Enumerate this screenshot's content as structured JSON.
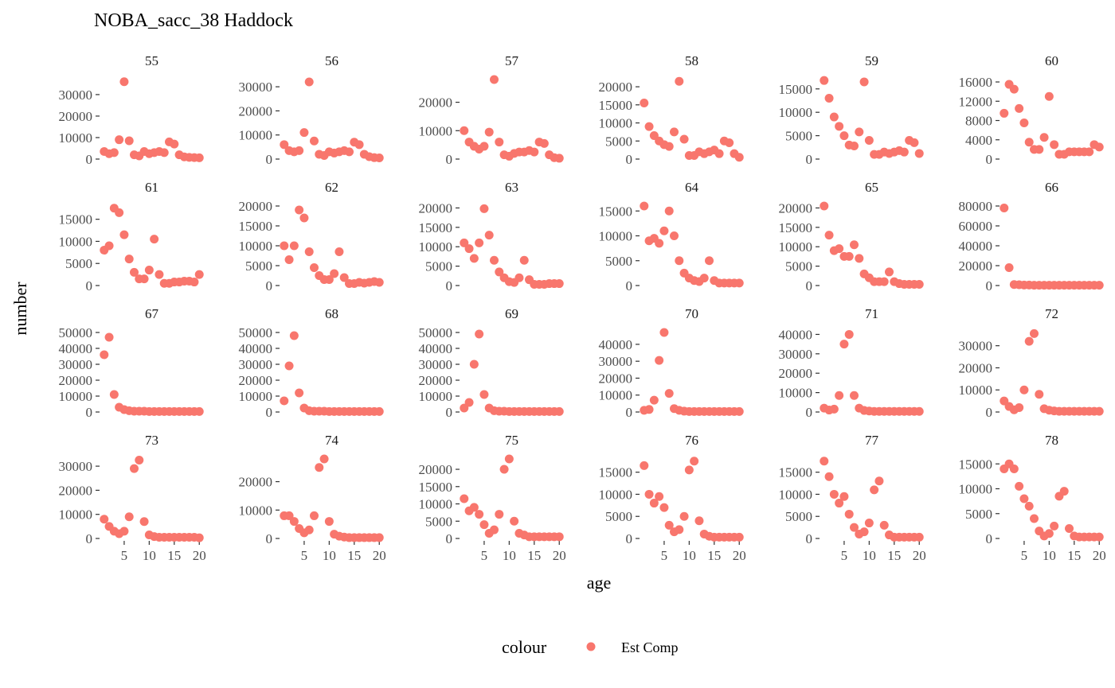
{
  "chart_data": {
    "type": "scatter",
    "title": "NOBA_sacc_38 Haddock",
    "xlabel": "age",
    "ylabel": "number",
    "x": [
      1,
      2,
      3,
      4,
      5,
      6,
      7,
      8,
      9,
      10,
      11,
      12,
      13,
      14,
      15,
      16,
      17,
      18,
      19,
      20
    ],
    "x_ticks": [
      5,
      10,
      15,
      20
    ],
    "grid": false,
    "legend": {
      "title": "colour",
      "position": "bottom",
      "entries": [
        {
          "label": "Est Comp",
          "color": "#F8766D"
        }
      ]
    },
    "panels": [
      {
        "label": "55",
        "ylim": [
          0,
          37000
        ],
        "yticks": [
          0,
          10000,
          20000,
          30000
        ],
        "values": [
          3500,
          2500,
          3000,
          9000,
          36000,
          8500,
          2000,
          1500,
          3500,
          2500,
          3000,
          3500,
          3000,
          8000,
          7000,
          2000,
          1000,
          800,
          700,
          600
        ]
      },
      {
        "label": "56",
        "ylim": [
          0,
          33000
        ],
        "yticks": [
          0,
          10000,
          20000,
          30000
        ],
        "values": [
          6000,
          3500,
          3000,
          3500,
          11000,
          32000,
          7500,
          2000,
          1500,
          3000,
          2500,
          3000,
          3500,
          3000,
          7000,
          6000,
          2000,
          1000,
          600,
          500
        ]
      },
      {
        "label": "57",
        "ylim": [
          0,
          28000
        ],
        "yticks": [
          0,
          10000,
          20000
        ],
        "values": [
          10000,
          6000,
          4500,
          3500,
          4500,
          9500,
          28000,
          6000,
          1500,
          1000,
          2000,
          2500,
          2500,
          3000,
          2500,
          6000,
          5500,
          1500,
          500,
          300
        ]
      },
      {
        "label": "58",
        "ylim": [
          0,
          22000
        ],
        "yticks": [
          0,
          5000,
          10000,
          15000,
          20000
        ],
        "values": [
          15500,
          9000,
          6500,
          5000,
          4000,
          3500,
          7500,
          21500,
          5500,
          1000,
          1000,
          2000,
          1500,
          2000,
          2500,
          1500,
          5000,
          4500,
          1500,
          500
        ]
      },
      {
        "label": "59",
        "ylim": [
          0,
          17000
        ],
        "yticks": [
          0,
          5000,
          10000,
          15000
        ],
        "values": [
          16800,
          13000,
          9000,
          7000,
          5000,
          3000,
          2800,
          5800,
          16500,
          4000,
          1000,
          1000,
          1500,
          1200,
          1500,
          1800,
          1500,
          4000,
          3500,
          1200
        ]
      },
      {
        "label": "60",
        "ylim": [
          0,
          16500
        ],
        "yticks": [
          0,
          4000,
          8000,
          12000,
          16000
        ],
        "values": [
          9500,
          15500,
          14500,
          10500,
          7500,
          3500,
          2000,
          2000,
          4500,
          13000,
          3000,
          1000,
          1000,
          1500,
          1500,
          1500,
          1500,
          1500,
          3000,
          2500
        ]
      },
      {
        "label": "61",
        "ylim": [
          0,
          18000
        ],
        "yticks": [
          0,
          5000,
          10000,
          15000
        ],
        "values": [
          8000,
          9000,
          17500,
          16500,
          11500,
          6000,
          3000,
          1500,
          1500,
          3500,
          10500,
          2500,
          500,
          500,
          800,
          800,
          1000,
          1000,
          800,
          2500
        ]
      },
      {
        "label": "62",
        "ylim": [
          0,
          20000
        ],
        "yticks": [
          0,
          5000,
          10000,
          15000,
          20000
        ],
        "values": [
          10000,
          6500,
          10000,
          19000,
          17000,
          8500,
          4500,
          2500,
          1500,
          1500,
          3000,
          8500,
          2000,
          500,
          500,
          800,
          600,
          800,
          1000,
          800
        ]
      },
      {
        "label": "63",
        "ylim": [
          0,
          20500
        ],
        "yticks": [
          0,
          5000,
          10000,
          15000,
          20000
        ],
        "values": [
          11000,
          9500,
          7000,
          11000,
          19800,
          13000,
          6500,
          3500,
          2000,
          1000,
          800,
          2000,
          6500,
          1500,
          300,
          300,
          300,
          500,
          500,
          500
        ]
      },
      {
        "label": "64",
        "ylim": [
          0,
          16000
        ],
        "yticks": [
          0,
          5000,
          10000,
          15000
        ],
        "values": [
          16000,
          9000,
          9500,
          8500,
          11000,
          15000,
          10000,
          5000,
          2500,
          1500,
          1000,
          800,
          1500,
          5000,
          1000,
          500,
          500,
          500,
          500,
          500
        ]
      },
      {
        "label": "65",
        "ylim": [
          0,
          20500
        ],
        "yticks": [
          0,
          5000,
          10000,
          15000,
          20000
        ],
        "values": [
          20500,
          13000,
          9000,
          9500,
          7500,
          7500,
          10500,
          7000,
          3000,
          2000,
          1000,
          1000,
          1000,
          3500,
          1000,
          500,
          300,
          300,
          300,
          300
        ]
      },
      {
        "label": "66",
        "ylim": [
          0,
          80000
        ],
        "yticks": [
          0,
          20000,
          40000,
          60000,
          80000
        ],
        "values": [
          78000,
          18000,
          1000,
          800,
          500,
          500,
          300,
          300,
          300,
          300,
          300,
          300,
          300,
          300,
          300,
          300,
          300,
          300,
          300,
          300
        ]
      },
      {
        "label": "67",
        "ylim": [
          0,
          50000
        ],
        "yticks": [
          0,
          10000,
          20000,
          30000,
          40000,
          50000
        ],
        "values": [
          36000,
          47000,
          11000,
          3000,
          1500,
          800,
          500,
          500,
          500,
          300,
          300,
          300,
          300,
          300,
          300,
          300,
          300,
          300,
          300,
          300
        ]
      },
      {
        "label": "68",
        "ylim": [
          0,
          50000
        ],
        "yticks": [
          0,
          10000,
          20000,
          30000,
          40000,
          50000
        ],
        "values": [
          7000,
          29000,
          48000,
          12000,
          2500,
          800,
          500,
          500,
          500,
          300,
          300,
          300,
          300,
          300,
          300,
          300,
          300,
          300,
          300,
          300
        ]
      },
      {
        "label": "69",
        "ylim": [
          0,
          50000
        ],
        "yticks": [
          0,
          10000,
          20000,
          30000,
          40000,
          50000
        ],
        "values": [
          2500,
          6000,
          30000,
          49000,
          11000,
          2500,
          800,
          500,
          500,
          300,
          300,
          300,
          300,
          300,
          300,
          300,
          300,
          300,
          300,
          300
        ]
      },
      {
        "label": "70",
        "ylim": [
          0,
          47000
        ],
        "yticks": [
          0,
          10000,
          20000,
          30000,
          40000
        ],
        "values": [
          1000,
          1500,
          7000,
          30500,
          47000,
          11000,
          2000,
          1000,
          500,
          300,
          300,
          300,
          300,
          300,
          300,
          300,
          300,
          300,
          300,
          300
        ]
      },
      {
        "label": "71",
        "ylim": [
          0,
          41000
        ],
        "yticks": [
          0,
          10000,
          20000,
          30000,
          40000
        ],
        "values": [
          2000,
          1000,
          1500,
          8500,
          35000,
          40000,
          8500,
          2000,
          800,
          500,
          300,
          300,
          300,
          300,
          300,
          300,
          300,
          300,
          300,
          300
        ]
      },
      {
        "label": "72",
        "ylim": [
          0,
          36000
        ],
        "yticks": [
          0,
          10000,
          20000,
          30000
        ],
        "values": [
          5000,
          2500,
          1000,
          2000,
          10000,
          32000,
          35500,
          8000,
          1500,
          800,
          500,
          300,
          300,
          300,
          300,
          300,
          300,
          300,
          300,
          300
        ]
      },
      {
        "label": "73",
        "ylim": [
          0,
          33000
        ],
        "yticks": [
          0,
          10000,
          20000,
          30000
        ],
        "values": [
          8000,
          5000,
          3000,
          2000,
          3000,
          9000,
          29000,
          32500,
          7000,
          1500,
          800,
          500,
          500,
          500,
          500,
          500,
          500,
          500,
          500,
          300
        ]
      },
      {
        "label": "74",
        "ylim": [
          0,
          28000
        ],
        "yticks": [
          0,
          10000,
          20000
        ],
        "values": [
          8000,
          8000,
          6000,
          3500,
          2000,
          3000,
          8000,
          25000,
          28000,
          6000,
          1500,
          800,
          500,
          300,
          300,
          300,
          300,
          300,
          300,
          300
        ]
      },
      {
        "label": "75",
        "ylim": [
          0,
          23000
        ],
        "yticks": [
          0,
          5000,
          10000,
          15000,
          20000
        ],
        "values": [
          11500,
          8000,
          9000,
          7000,
          4000,
          1500,
          2500,
          7000,
          20000,
          23000,
          5000,
          1500,
          1000,
          500,
          500,
          500,
          500,
          500,
          500,
          500
        ]
      },
      {
        "label": "76",
        "ylim": [
          0,
          18000
        ],
        "yticks": [
          0,
          5000,
          10000,
          15000
        ],
        "values": [
          16500,
          10000,
          8000,
          9500,
          7000,
          3000,
          1500,
          2000,
          5000,
          15500,
          17500,
          4000,
          1000,
          500,
          300,
          300,
          300,
          300,
          300,
          300
        ]
      },
      {
        "label": "77",
        "ylim": [
          0,
          18000
        ],
        "yticks": [
          0,
          5000,
          10000,
          15000
        ],
        "values": [
          17500,
          14000,
          10000,
          8000,
          9500,
          5500,
          2500,
          1000,
          1500,
          3500,
          11000,
          13000,
          3000,
          800,
          300,
          300,
          300,
          300,
          300,
          300
        ]
      },
      {
        "label": "78",
        "ylim": [
          0,
          16000
        ],
        "yticks": [
          0,
          5000,
          10000,
          15000
        ],
        "values": [
          14000,
          15000,
          14000,
          10500,
          8000,
          6500,
          4000,
          1500,
          500,
          1000,
          2500,
          8500,
          9500,
          2000,
          500,
          300,
          300,
          300,
          300,
          300
        ]
      }
    ]
  }
}
